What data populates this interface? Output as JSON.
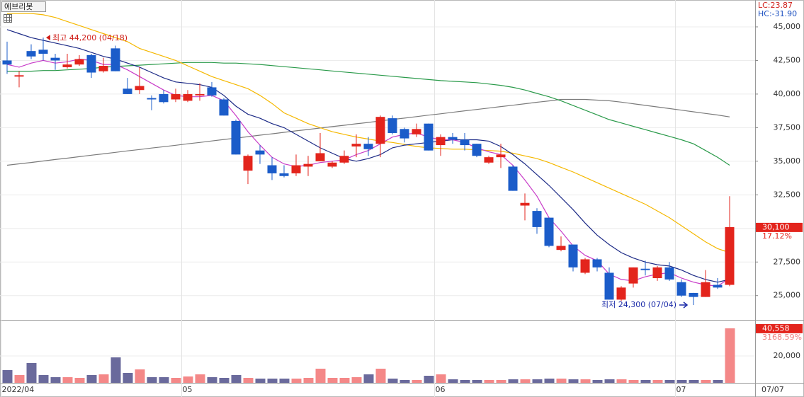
{
  "header": {
    "title": "에브리봇",
    "lc": "LC:23.87",
    "hc": "HC:-31.90"
  },
  "chart_data": {
    "type": "candlestick",
    "categories": [
      "2022/04",
      null,
      null,
      null,
      null,
      null,
      null,
      null,
      null,
      null,
      null,
      null,
      null,
      null,
      null,
      "05",
      null,
      null,
      null,
      null,
      null,
      null,
      null,
      null,
      null,
      null,
      null,
      null,
      null,
      null,
      null,
      null,
      null,
      null,
      null,
      null,
      "06",
      null,
      null,
      null,
      null,
      null,
      null,
      null,
      null,
      null,
      null,
      null,
      null,
      null,
      null,
      null,
      null,
      null,
      null,
      null,
      "07",
      null,
      null,
      null,
      null
    ],
    "current_date": "07/07",
    "open": [
      42500,
      41300,
      43200,
      43300,
      42700,
      42000,
      42200,
      42900,
      41700,
      43400,
      40400,
      40300,
      39700,
      40000,
      39600,
      39500,
      39900,
      40500,
      39600,
      38000,
      34300,
      35800,
      34700,
      34100,
      34100,
      34600,
      35000,
      34600,
      34900,
      36100,
      36300,
      36300,
      38200,
      37400,
      37000,
      37800,
      36200,
      36800,
      36600,
      36300,
      34900,
      35300,
      34600,
      31700,
      31300,
      30800,
      28400,
      28800,
      26700,
      27700,
      26700,
      24700,
      25900,
      27000,
      26300,
      27100,
      26000,
      25200,
      24900,
      25800,
      25800
    ],
    "high": [
      43900,
      41700,
      43700,
      44200,
      43000,
      43000,
      42900,
      43000,
      42700,
      43600,
      41200,
      42000,
      39900,
      40300,
      40400,
      40300,
      40800,
      40900,
      39700,
      38100,
      35500,
      36200,
      35300,
      34700,
      35500,
      35400,
      37100,
      35000,
      35800,
      37000,
      36800,
      38400,
      38400,
      37500,
      37800,
      37800,
      37000,
      37100,
      37100,
      36300,
      35400,
      36300,
      34700,
      32600,
      31500,
      30800,
      29400,
      28800,
      27800,
      27800,
      27100,
      25700,
      27100,
      27600,
      27200,
      27500,
      26200,
      25200,
      26900,
      26300,
      32400
    ],
    "low": [
      41500,
      40500,
      42600,
      42500,
      41800,
      41900,
      42100,
      41200,
      41600,
      41700,
      40000,
      40000,
      38800,
      39300,
      39400,
      39400,
      39500,
      39800,
      38400,
      35500,
      33300,
      34800,
      33600,
      33800,
      33900,
      33900,
      35000,
      34500,
      34800,
      35300,
      35400,
      35300,
      37000,
      36400,
      36800,
      35800,
      35400,
      36300,
      35800,
      35300,
      34800,
      34500,
      32800,
      30600,
      29600,
      28600,
      28300,
      26800,
      26600,
      26800,
      24700,
      24600,
      25600,
      26500,
      26100,
      26100,
      24900,
      24300,
      24900,
      25500,
      25700
    ],
    "close": [
      42200,
      41400,
      42800,
      43000,
      42500,
      42200,
      42600,
      41600,
      42100,
      41700,
      40000,
      40600,
      39600,
      39400,
      40000,
      40000,
      40000,
      39900,
      38400,
      35500,
      35400,
      35500,
      34100,
      33900,
      34700,
      34800,
      35600,
      34900,
      35400,
      36300,
      35900,
      38300,
      37100,
      36700,
      37400,
      35800,
      36800,
      36600,
      36200,
      35400,
      35300,
      35500,
      32800,
      31900,
      30100,
      28700,
      28700,
      27100,
      27700,
      27100,
      24700,
      25600,
      27100,
      26900,
      27100,
      26200,
      25000,
      24900,
      26000,
      25600,
      30100
    ],
    "up_color": "#e3241c",
    "down_color": "#1b5cc9",
    "ylim": [
      23300,
      47000
    ],
    "yticks": [
      {
        "value": 25000,
        "label": "25,000"
      },
      {
        "value": 27500,
        "label": "27,500"
      },
      {
        "value": 30000,
        "label": "30,000"
      },
      {
        "value": 32500,
        "label": "32,500"
      },
      {
        "value": 35000,
        "label": "35,000"
      },
      {
        "value": 37500,
        "label": "37,500"
      },
      {
        "value": 40000,
        "label": "40,000"
      },
      {
        "value": 42500,
        "label": "42,500"
      },
      {
        "value": 45000,
        "label": "45,000"
      }
    ],
    "moving_averages": [
      {
        "color": "#7b7b7b",
        "values": [
          34700,
          34810,
          34910,
          35020,
          35130,
          35230,
          35340,
          35450,
          35550,
          35660,
          35770,
          35870,
          35980,
          36080,
          36190,
          36300,
          36400,
          36510,
          36620,
          36720,
          36830,
          36940,
          37040,
          37150,
          37260,
          37360,
          37470,
          37580,
          37680,
          37790,
          37890,
          38000,
          38110,
          38210,
          38320,
          38430,
          38530,
          38640,
          38750,
          38850,
          38960,
          39070,
          39170,
          39280,
          39390,
          39490,
          39600,
          39600,
          39600,
          39550,
          39500,
          39400,
          39280,
          39160,
          39040,
          38920,
          38800,
          38680,
          38560,
          38440,
          38300
        ]
      },
      {
        "color": "#2a9a4a",
        "values": [
          41700,
          41700,
          41700,
          41750,
          41750,
          41800,
          41850,
          41900,
          42000,
          42050,
          42100,
          42150,
          42200,
          42250,
          42300,
          42350,
          42350,
          42350,
          42300,
          42300,
          42250,
          42200,
          42120,
          42040,
          41960,
          41880,
          41800,
          41720,
          41640,
          41560,
          41480,
          41400,
          41320,
          41240,
          41160,
          41080,
          41000,
          40950,
          40900,
          40850,
          40750,
          40650,
          40500,
          40300,
          40050,
          39800,
          39500,
          39150,
          38800,
          38450,
          38100,
          37850,
          37600,
          37350,
          37100,
          36850,
          36600,
          36300,
          35800,
          35300,
          34700
        ]
      },
      {
        "color": "#f5b800",
        "values": [
          46000,
          46000,
          46000,
          45900,
          45700,
          45400,
          45100,
          44800,
          44500,
          44200,
          43900,
          43400,
          43100,
          42800,
          42500,
          42100,
          41700,
          41300,
          41000,
          40700,
          40400,
          39900,
          39300,
          38600,
          38200,
          37800,
          37500,
          37200,
          37000,
          36800,
          36650,
          36500,
          36400,
          36250,
          36100,
          36000,
          35950,
          35900,
          35900,
          35850,
          35800,
          35750,
          35600,
          35400,
          35200,
          34900,
          34550,
          34200,
          33800,
          33400,
          33000,
          32600,
          32200,
          31800,
          31300,
          30800,
          30200,
          29600,
          29000,
          28500,
          28200
        ]
      },
      {
        "color": "#1c2a86",
        "values": [
          44800,
          44500,
          44200,
          44000,
          43800,
          43600,
          43400,
          43100,
          42800,
          42600,
          42300,
          42000,
          41600,
          41200,
          40900,
          40800,
          40700,
          40500,
          39900,
          39100,
          38500,
          38200,
          37800,
          37500,
          37000,
          36500,
          36000,
          35600,
          35200,
          35000,
          35200,
          35500,
          36000,
          36200,
          36300,
          36400,
          36500,
          36600,
          36600,
          36600,
          36500,
          36100,
          35500,
          34800,
          34000,
          33200,
          32300,
          31400,
          30400,
          29500,
          28800,
          28200,
          27800,
          27500,
          27300,
          27200,
          26900,
          26500,
          26200,
          26000,
          26200
        ]
      },
      {
        "color": "#c83cc8",
        "values": [
          42200,
          42000,
          42300,
          42500,
          42300,
          42400,
          42600,
          42500,
          42200,
          42200,
          41800,
          41300,
          40800,
          40300,
          39900,
          39800,
          39800,
          39900,
          39500,
          38400,
          37200,
          36200,
          35300,
          34800,
          34600,
          34700,
          34900,
          35000,
          35100,
          35500,
          35800,
          36300,
          36800,
          37000,
          37100,
          36800,
          36600,
          36600,
          36400,
          36000,
          35700,
          35500,
          34700,
          33600,
          32400,
          30800,
          29800,
          28700,
          28000,
          27600,
          26600,
          26200,
          26100,
          26400,
          26600,
          26700,
          26300,
          26000,
          25800,
          25700,
          26300
        ]
      }
    ],
    "annotations": [
      {
        "text": "최고 44,200 (04/18)",
        "value": 44200,
        "kind": "high",
        "color": "#d0201a"
      },
      {
        "text": "최저 24,300 (07/04)",
        "value": 24300,
        "kind": "low",
        "color": "#1a2aa8"
      }
    ],
    "last_price_label": "30,100",
    "change_label": "17.12%",
    "volume": {
      "values": [
        9470,
        5790,
        14730,
        5790,
        4210,
        4210,
        3680,
        5790,
        6310,
        18940,
        7370,
        10000,
        4210,
        4210,
        3680,
        4740,
        6310,
        4210,
        3680,
        5790,
        3680,
        3160,
        3160,
        3160,
        3160,
        3680,
        10520,
        3680,
        3680,
        4210,
        6310,
        10520,
        3160,
        2100,
        2100,
        5260,
        6310,
        2630,
        2100,
        2100,
        2100,
        2100,
        2630,
        2630,
        2630,
        3160,
        3160,
        2630,
        2630,
        2100,
        2630,
        2630,
        2100,
        2100,
        2100,
        2100,
        2100,
        2100,
        2100,
        2100,
        40558
      ],
      "up_color": "#f48888",
      "down_color": "#6a6a9c",
      "ylim": [
        0,
        46300
      ],
      "yticks": [
        {
          "value": 20000,
          "label": "20,000"
        }
      ],
      "last_label": "40,558",
      "change_label": "3168.59%"
    }
  }
}
